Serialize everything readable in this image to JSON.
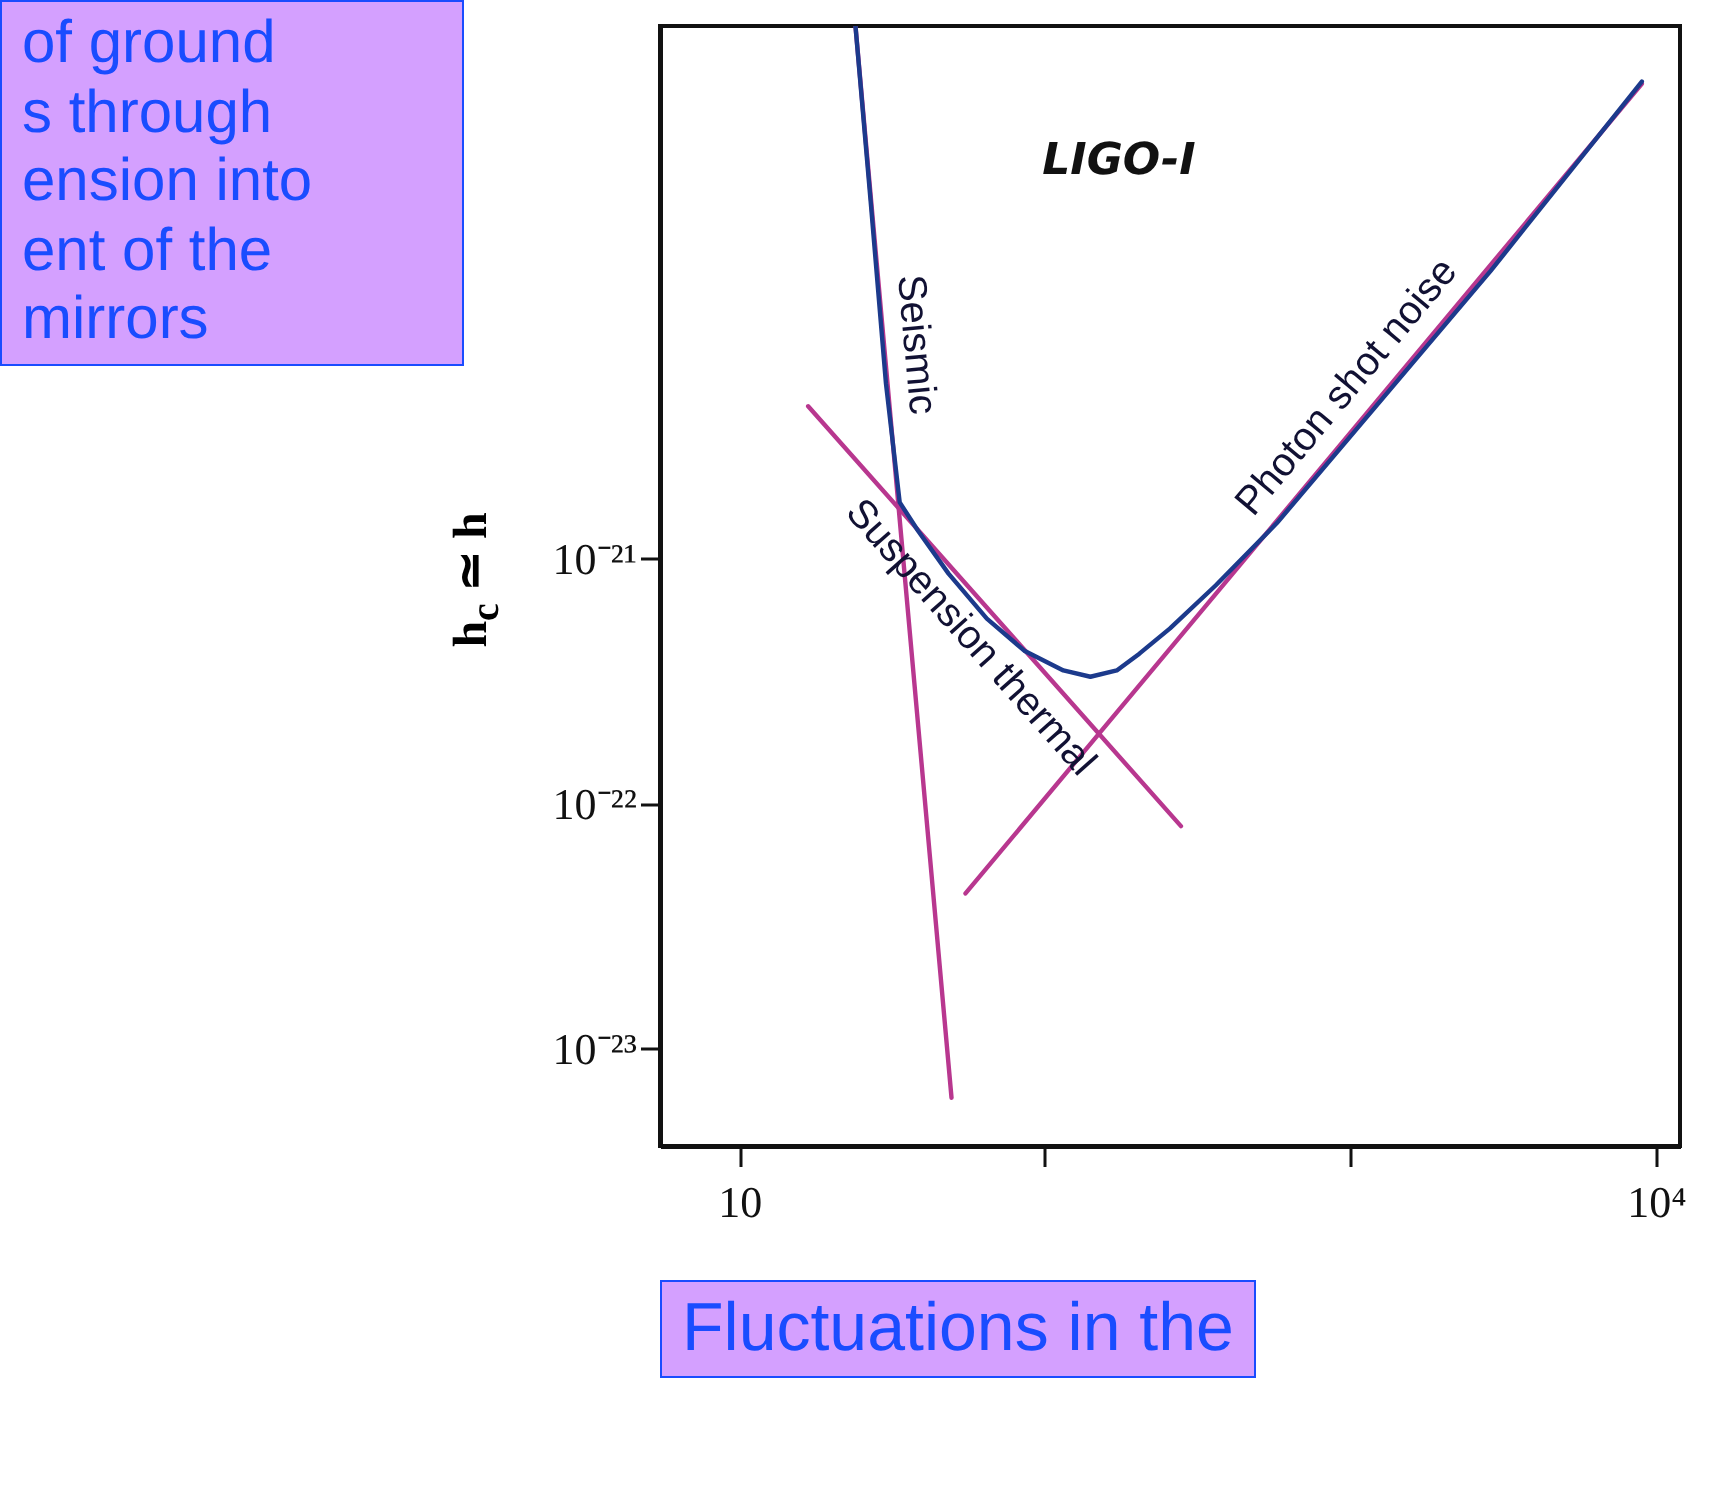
{
  "chart_data": {
    "type": "line",
    "title": "LIGO-I",
    "ylabel": "h$_{c}$ ≃ h",
    "log": "xy",
    "grid": false,
    "marker": "none",
    "line_style": "solid",
    "xlim": [
      5.5,
      12000
    ],
    "ylim": [
      4e-24,
      1.5e-19
    ],
    "xticks": [
      {
        "value": 10,
        "label": "10"
      },
      {
        "value": 100,
        "label": null
      },
      {
        "value": 1000,
        "label": null
      },
      {
        "value": 10000,
        "label": "10⁴"
      }
    ],
    "yticks": [
      {
        "value": 1e-23,
        "label": "10⁻²³"
      },
      {
        "value": 1e-22,
        "label": "10⁻²²"
      },
      {
        "value": 1e-21,
        "label": "10⁻²¹"
      }
    ],
    "annotations": [
      "of ground\ns through\nension into\nent of the\nmirrors",
      "Fluctuations in the"
    ],
    "series": [
      {
        "name": "Seismic",
        "color": "#b8378f",
        "x": [
          24,
          49.5
        ],
        "values": [
          1.5e-19,
          6.3e-24
        ]
      },
      {
        "name": "Suspension thermal",
        "color": "#b8378f",
        "x": [
          16.8,
          279
        ],
        "values": [
          4.2e-21,
          8.1e-23
        ]
      },
      {
        "name": "Photon shot noise",
        "color": "#b8378f",
        "x": [
          55,
          9000
        ],
        "values": [
          4.3e-23,
          8.7e-20
        ]
      },
      {
        "color": "#1c3a8c",
        "x": [
          24,
          26.9,
          30.2,
          33.5,
          38.5,
          48.4,
          64.6,
          86,
          115,
          141,
          172,
          204,
          257,
          363,
          575,
          1290,
          2880,
          9000
        ],
        "values": [
          1.5e-19,
          2.9e-20,
          5.2e-21,
          1.7e-21,
          1.3e-21,
          8.7e-22,
          5.7e-22,
          4.2e-22,
          3.5e-22,
          3.3e-22,
          3.5e-22,
          4.1e-22,
          5.2e-22,
          7.8e-22,
          1.4e-21,
          4.6e-21,
          1.5e-20,
          8.9e-20
        ]
      }
    ]
  }
}
